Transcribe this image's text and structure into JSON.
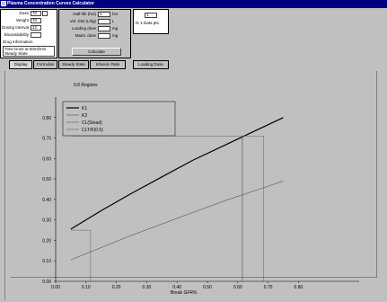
{
  "window": {
    "title": "Plasma Concentration Curves Calculator"
  },
  "left_panel": {
    "rows": [
      {
        "label": "Dose",
        "value": "70"
      },
      {
        "label": "Weight",
        "value": "70"
      },
      {
        "label": "Dosing Interval",
        "value": "12"
      },
      {
        "label": "Bioavailability",
        "value": ""
      }
    ],
    "list_label": "Drug Information",
    "list_items": [
      "Time Dose at 50ml/min",
      "Steady State"
    ]
  },
  "mid_panel": {
    "rows": [
      {
        "label": "Half-life (hrs)",
        "value": "1",
        "unit": "hrs"
      },
      {
        "label": "Vol. Dist (L/kg)",
        "value": "",
        "unit": "L"
      },
      {
        "label": "Loading dose",
        "value": "",
        "unit": "mg"
      },
      {
        "label": "Maint. dose",
        "value": "",
        "unit": "mg"
      }
    ],
    "button_label": "Calculate"
  },
  "right_panel": {
    "value": "1",
    "note": "hr    1 Data pts"
  },
  "tabs": [
    "Display",
    "Formulas",
    "Steady State",
    "Infusion Rate",
    "Loading Dose"
  ],
  "chart_data": {
    "type": "line",
    "title": "0.8 Regions",
    "xlabel": "Break GFR%",
    "ylabel": "",
    "xlim": [
      0.0,
      1.0
    ],
    "ylim": [
      0.0,
      0.9
    ],
    "x_ticks": [
      "0.00",
      "0.10",
      "0.20",
      "0.30",
      "0.40",
      "0.50",
      "0.60",
      "0.70",
      "0.80"
    ],
    "y_ticks": [
      "0.00",
      "0.10",
      "0.20",
      "0.30",
      "0.40",
      "0.50",
      "0.60",
      "0.70",
      "0.80"
    ],
    "grid": false,
    "legend_position": "top-left",
    "legend": [
      "K1",
      "K2",
      "CL(Stead)",
      "CLT/F(0.5)"
    ],
    "series": [
      {
        "name": "K1",
        "x": [
          0.05,
          0.15,
          0.25,
          0.35,
          0.45,
          0.55,
          0.65,
          0.75
        ],
        "y": [
          0.255,
          0.345,
          0.43,
          0.51,
          0.59,
          0.66,
          0.73,
          0.8
        ],
        "color": "#000000",
        "width": 1.2
      },
      {
        "name": "K2",
        "x": [
          0.05,
          0.15,
          0.25,
          0.35,
          0.45,
          0.55,
          0.65,
          0.75
        ],
        "y": [
          0.105,
          0.165,
          0.225,
          0.28,
          0.335,
          0.39,
          0.44,
          0.49
        ],
        "color": "#606060",
        "width": 0.7
      },
      {
        "name": "CL(Stead)",
        "x": [
          0.05,
          0.115,
          0.115
        ],
        "y": [
          0.25,
          0.25,
          0.0
        ],
        "color": "#606060",
        "width": 0.5
      },
      {
        "name": "CLT/F(0.5)",
        "x": [
          0.05,
          0.615,
          0.615,
          0.615,
          0.685,
          0.685
        ],
        "y": [
          0.71,
          0.71,
          0.0,
          0.71,
          0.71,
          0.0
        ],
        "color": "#606060",
        "width": 0.5
      }
    ]
  }
}
